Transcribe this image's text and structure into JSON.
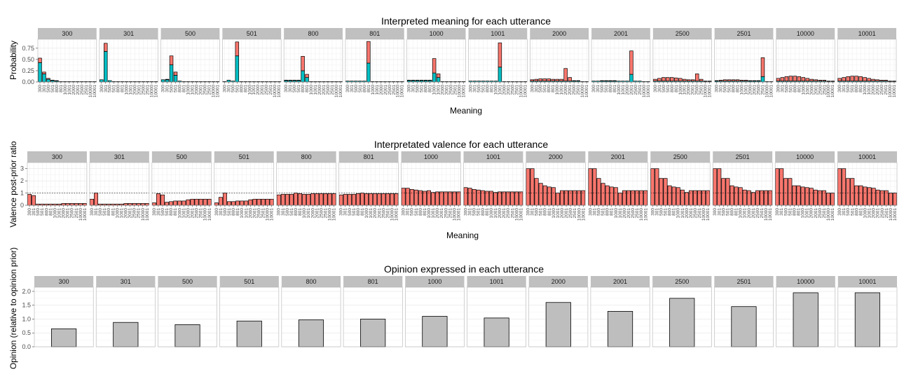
{
  "colors": {
    "red": "#f8766d",
    "teal": "#00bfc4",
    "grey": "#bebebe",
    "strip": "#c0c0c0"
  },
  "chart_data": [
    {
      "type": "bar",
      "stacked": true,
      "title": "Interpreted meaning for each utterance",
      "xlabel": "Meaning",
      "ylabel": "Probability",
      "ylim": [
        0,
        0.95
      ],
      "yticks": [
        "0.00",
        "0.25",
        "0.50",
        "0.75"
      ],
      "ytick_values": [
        0,
        0.25,
        0.5,
        0.75
      ],
      "grid": true,
      "legend": "none",
      "panels": [
        "300",
        "301",
        "500",
        "501",
        "800",
        "801",
        "1000",
        "1001",
        "2000",
        "2001",
        "2500",
        "2501",
        "10000",
        "10001"
      ],
      "categories": [
        "300",
        "301",
        "500",
        "501",
        "800",
        "801",
        "1000",
        "1001",
        "2000",
        "2001",
        "2500",
        "2501",
        "10000",
        "10001"
      ],
      "series": [
        {
          "values": [
            [
              0.43,
              0.18,
              0.06,
              0.03,
              0.02,
              0.01,
              0.01,
              0.01,
              0.01,
              0.01,
              0.01,
              0.01,
              0.01,
              0.01
            ],
            [
              0.05,
              0.68,
              0.03,
              0.01,
              0.01,
              0.01,
              0.01,
              0.01,
              0.01,
              0.01,
              0.01,
              0.01,
              0.01,
              0.01
            ],
            [
              0.05,
              0.05,
              0.38,
              0.15,
              0.02,
              0.01,
              0.01,
              0.01,
              0.01,
              0.01,
              0.01,
              0.01,
              0.01,
              0.01
            ],
            [
              0.01,
              0.04,
              0.02,
              0.58,
              0.01,
              0.01,
              0.01,
              0.01,
              0.01,
              0.01,
              0.01,
              0.01,
              0.01,
              0.01
            ],
            [
              0.03,
              0.03,
              0.03,
              0.03,
              0.25,
              0.1,
              0.01,
              0.01,
              0.01,
              0.01,
              0.01,
              0.01,
              0.01,
              0.01
            ],
            [
              0.02,
              0.02,
              0.02,
              0.02,
              0.02,
              0.42,
              0.01,
              0.01,
              0.01,
              0.01,
              0.01,
              0.01,
              0.01,
              0.01
            ],
            [
              0.03,
              0.03,
              0.03,
              0.03,
              0.03,
              0.03,
              0.2,
              0.1,
              0.01,
              0.01,
              0.01,
              0.01,
              0.01,
              0.01
            ],
            [
              0.02,
              0.02,
              0.02,
              0.02,
              0.02,
              0.02,
              0.02,
              0.33,
              0.01,
              0.01,
              0.01,
              0.01,
              0.01,
              0.01
            ],
            [
              0.02,
              0.02,
              0.02,
              0.02,
              0.02,
              0.02,
              0.02,
              0.02,
              0.02,
              0.02,
              0.02,
              0.02,
              0.01,
              0.01
            ],
            [
              0.02,
              0.02,
              0.02,
              0.02,
              0.02,
              0.02,
              0.02,
              0.02,
              0.02,
              0.17,
              0.02,
              0.02,
              0.01,
              0.01
            ],
            [
              0.02,
              0.02,
              0.02,
              0.02,
              0.02,
              0.02,
              0.02,
              0.02,
              0.02,
              0.02,
              0.02,
              0.02,
              0.01,
              0.01
            ],
            [
              0.02,
              0.02,
              0.02,
              0.02,
              0.02,
              0.02,
              0.02,
              0.02,
              0.02,
              0.02,
              0.02,
              0.12,
              0.01,
              0.01
            ],
            [
              0.02,
              0.02,
              0.02,
              0.02,
              0.02,
              0.02,
              0.02,
              0.02,
              0.02,
              0.02,
              0.02,
              0.02,
              0.01,
              0.01
            ],
            [
              0.02,
              0.02,
              0.02,
              0.02,
              0.02,
              0.02,
              0.02,
              0.02,
              0.02,
              0.02,
              0.02,
              0.02,
              0.01,
              0.01
            ]
          ]
        },
        {
          "values": [
            [
              0.1,
              0.04,
              0.02,
              0.01,
              0.01,
              0.0,
              0.0,
              0.0,
              0.0,
              0.0,
              0.0,
              0.0,
              0.0,
              0.0
            ],
            [
              0.0,
              0.18,
              0.0,
              0.0,
              0.0,
              0.0,
              0.0,
              0.0,
              0.0,
              0.0,
              0.0,
              0.0,
              0.0,
              0.0
            ],
            [
              0.0,
              0.01,
              0.2,
              0.07,
              0.0,
              0.0,
              0.0,
              0.0,
              0.0,
              0.0,
              0.0,
              0.0,
              0.0,
              0.0
            ],
            [
              0.0,
              0.0,
              0.0,
              0.31,
              0.0,
              0.0,
              0.0,
              0.0,
              0.0,
              0.0,
              0.0,
              0.0,
              0.0,
              0.0
            ],
            [
              0.01,
              0.01,
              0.01,
              0.01,
              0.32,
              0.07,
              0.0,
              0.0,
              0.0,
              0.0,
              0.0,
              0.0,
              0.0,
              0.0
            ],
            [
              0.0,
              0.0,
              0.0,
              0.0,
              0.0,
              0.48,
              0.0,
              0.0,
              0.0,
              0.0,
              0.0,
              0.0,
              0.0,
              0.0
            ],
            [
              0.01,
              0.01,
              0.01,
              0.01,
              0.01,
              0.01,
              0.32,
              0.08,
              0.0,
              0.0,
              0.0,
              0.0,
              0.0,
              0.0
            ],
            [
              0.0,
              0.0,
              0.0,
              0.0,
              0.0,
              0.0,
              0.0,
              0.54,
              0.0,
              0.0,
              0.0,
              0.0,
              0.0,
              0.0
            ],
            [
              0.03,
              0.04,
              0.05,
              0.05,
              0.05,
              0.04,
              0.04,
              0.04,
              0.28,
              0.08,
              0.01,
              0.01,
              0.0,
              0.0
            ],
            [
              0.0,
              0.0,
              0.01,
              0.01,
              0.01,
              0.01,
              0.0,
              0.0,
              0.0,
              0.52,
              0.0,
              0.0,
              0.0,
              0.0
            ],
            [
              0.04,
              0.06,
              0.08,
              0.08,
              0.08,
              0.07,
              0.06,
              0.04,
              0.03,
              0.03,
              0.16,
              0.04,
              0.01,
              0.01
            ],
            [
              0.01,
              0.02,
              0.03,
              0.03,
              0.03,
              0.03,
              0.02,
              0.02,
              0.01,
              0.01,
              0.01,
              0.42,
              0.0,
              0.0
            ],
            [
              0.06,
              0.08,
              0.1,
              0.11,
              0.11,
              0.1,
              0.08,
              0.06,
              0.04,
              0.03,
              0.02,
              0.02,
              0.01,
              0.01
            ],
            [
              0.06,
              0.08,
              0.1,
              0.11,
              0.11,
              0.1,
              0.08,
              0.06,
              0.04,
              0.03,
              0.02,
              0.02,
              0.01,
              0.01
            ]
          ]
        }
      ]
    },
    {
      "type": "bar",
      "title": "Interpretated valence for each utterance",
      "xlabel": "Meaning",
      "ylabel": "Valence post-prior ratio",
      "ylim": [
        0,
        3.5
      ],
      "yticks": [
        "0",
        "1",
        "2",
        "3"
      ],
      "ytick_values": [
        0,
        1,
        2,
        3
      ],
      "reference_line": 1,
      "grid": true,
      "legend": "none",
      "panels": [
        "300",
        "301",
        "500",
        "501",
        "800",
        "801",
        "1000",
        "1001",
        "2000",
        "2001",
        "2500",
        "2501",
        "10000",
        "10001"
      ],
      "categories": [
        "300",
        "301",
        "500",
        "501",
        "800",
        "801",
        "1000",
        "1001",
        "2000",
        "2001",
        "2500",
        "2501",
        "10000",
        "10001"
      ],
      "values": [
        [
          0.9,
          0.8,
          0.1,
          0.1,
          0.1,
          0.1,
          0.1,
          0.1,
          0.15,
          0.15,
          0.15,
          0.15,
          0.15,
          0.15
        ],
        [
          0.5,
          1.0,
          0.1,
          0.1,
          0.1,
          0.1,
          0.1,
          0.1,
          0.15,
          0.15,
          0.15,
          0.15,
          0.15,
          0.15
        ],
        [
          0.2,
          0.95,
          0.85,
          0.25,
          0.3,
          0.35,
          0.35,
          0.35,
          0.45,
          0.5,
          0.5,
          0.5,
          0.5,
          0.5
        ],
        [
          0.2,
          0.65,
          1.0,
          0.3,
          0.3,
          0.35,
          0.35,
          0.35,
          0.45,
          0.5,
          0.5,
          0.5,
          0.5,
          0.5
        ],
        [
          0.85,
          0.9,
          0.9,
          0.9,
          1.0,
          0.95,
          0.9,
          0.9,
          0.95,
          0.95,
          0.95,
          0.95,
          0.95,
          0.95
        ],
        [
          0.85,
          0.9,
          0.9,
          0.9,
          0.95,
          1.0,
          0.95,
          0.95,
          0.95,
          0.95,
          0.95,
          0.95,
          0.95,
          0.95
        ],
        [
          1.4,
          1.4,
          1.3,
          1.25,
          1.2,
          1.15,
          1.2,
          1.05,
          1.1,
          1.1,
          1.1,
          1.1,
          1.1,
          1.1
        ],
        [
          1.45,
          1.4,
          1.3,
          1.25,
          1.2,
          1.15,
          1.15,
          1.05,
          1.1,
          1.1,
          1.1,
          1.1,
          1.1,
          1.1
        ],
        [
          3.0,
          3.0,
          2.2,
          1.8,
          1.6,
          1.5,
          1.45,
          1.0,
          1.2,
          1.2,
          1.2,
          1.2,
          1.2,
          1.2
        ],
        [
          3.0,
          3.0,
          2.2,
          1.8,
          1.6,
          1.5,
          1.45,
          1.0,
          1.2,
          1.2,
          1.2,
          1.2,
          1.2,
          1.2
        ],
        [
          3.0,
          3.0,
          2.2,
          2.2,
          1.6,
          1.5,
          1.45,
          1.25,
          1.05,
          1.2,
          1.2,
          1.2,
          1.2,
          1.2
        ],
        [
          3.0,
          3.0,
          2.2,
          2.2,
          1.6,
          1.5,
          1.45,
          1.25,
          1.2,
          1.05,
          1.2,
          1.2,
          1.2,
          1.2
        ],
        [
          3.0,
          3.0,
          2.2,
          2.2,
          1.6,
          1.6,
          1.5,
          1.45,
          1.4,
          1.25,
          1.2,
          1.2,
          1.0,
          1.0
        ],
        [
          3.0,
          3.0,
          2.2,
          2.2,
          1.6,
          1.6,
          1.5,
          1.45,
          1.4,
          1.25,
          1.2,
          1.2,
          1.0,
          1.0
        ]
      ]
    },
    {
      "type": "bar",
      "title": "Opinion expressed in each utterance",
      "xlabel": "",
      "ylabel": "Opinion (relative to opinion prior)",
      "ylim": [
        0,
        2.15
      ],
      "yticks": [
        "0.0",
        "0.5",
        "1.0",
        "1.5",
        "2.0"
      ],
      "ytick_values": [
        0,
        0.5,
        1.0,
        1.5,
        2.0
      ],
      "grid": true,
      "legend": "none",
      "panels": [
        "300",
        "301",
        "500",
        "501",
        "800",
        "801",
        "1000",
        "1001",
        "2000",
        "2001",
        "2500",
        "2501",
        "10000",
        "10001"
      ],
      "values": [
        0.65,
        0.88,
        0.8,
        0.93,
        0.97,
        1.0,
        1.1,
        1.04,
        1.6,
        1.28,
        1.75,
        1.45,
        1.95,
        1.95
      ]
    }
  ]
}
